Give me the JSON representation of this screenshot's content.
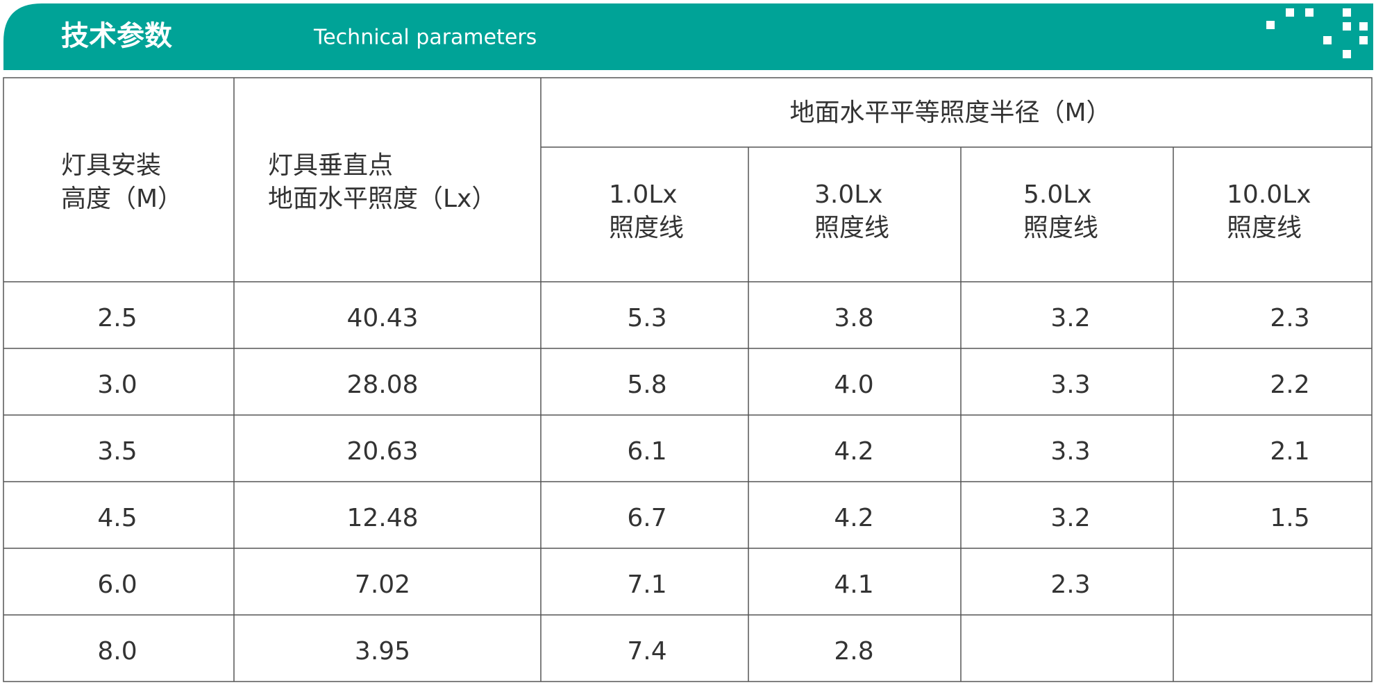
{
  "header": {
    "title": "技术参数",
    "subtitle": "Technical parameters"
  },
  "table": {
    "group_header": "地面水平平等照度半径（M）",
    "columns": [
      [
        "灯具安装",
        "高度（M）"
      ],
      [
        "灯具垂直点",
        "地面水平照度（Lx）"
      ],
      [
        "1.0Lx",
        "照度线"
      ],
      [
        "3.0Lx",
        "照度线"
      ],
      [
        "5.0Lx",
        "照度线"
      ],
      [
        "10.0Lx",
        "照度线"
      ]
    ],
    "rows": [
      [
        "2.5",
        "40.43",
        "5.3",
        "3.8",
        "3.2",
        "2.3"
      ],
      [
        "3.0",
        "28.08",
        "5.8",
        "4.0",
        "3.3",
        "2.2"
      ],
      [
        "3.5",
        "20.63",
        "6.1",
        "4.2",
        "3.3",
        "2.1"
      ],
      [
        "4.5",
        "12.48",
        "6.7",
        "4.2",
        "3.2",
        "1.5"
      ],
      [
        "6.0",
        "7.02",
        "7.1",
        "4.1",
        "2.3"
      ],
      [
        "8.0",
        "3.95",
        "7.4",
        "2.8"
      ]
    ]
  }
}
